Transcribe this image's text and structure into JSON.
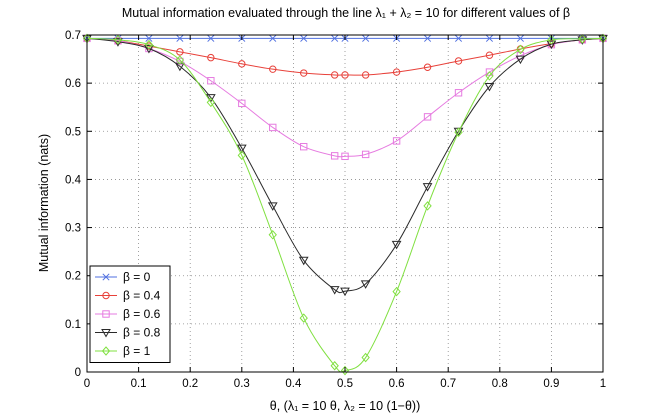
{
  "chart_data": {
    "type": "line",
    "title": "Mutual information evaluated through the line λ₁ + λ₂ = 10 for different values of β",
    "xlabel": "θ, (λ₁ = 10 θ, λ₂ = 10 (1−θ))",
    "ylabel": "Mutual information (nats)",
    "xlim": [
      0,
      1
    ],
    "ylim": [
      0,
      0.7
    ],
    "xticks": [
      0,
      0.1,
      0.2,
      0.3,
      0.4,
      0.5,
      0.6,
      0.7,
      0.8,
      0.9,
      1
    ],
    "xtick_labels": [
      "0",
      "0.1",
      "0.2",
      "0.3",
      "0.4",
      "0.5",
      "0.6",
      "0.7",
      "0.8",
      "0.9",
      "1"
    ],
    "yticks": [
      0,
      0.1,
      0.2,
      0.3,
      0.4,
      0.5,
      0.6,
      0.7
    ],
    "ytick_labels": [
      "0",
      "0.1",
      "0.2",
      "0.3",
      "0.4",
      "0.5",
      "0.6",
      "0.7"
    ],
    "grid": true,
    "legend_position": "bottom-left",
    "x": [
      0,
      0.06,
      0.12,
      0.18,
      0.24,
      0.3,
      0.36,
      0.42,
      0.48,
      0.5,
      0.54,
      0.6,
      0.66,
      0.72,
      0.78,
      0.84,
      0.9,
      0.96,
      1.0
    ],
    "series": [
      {
        "name": "β = 0",
        "color": "#4f6fe0",
        "marker": "x",
        "values": [
          0.693,
          0.693,
          0.693,
          0.693,
          0.693,
          0.693,
          0.693,
          0.693,
          0.693,
          0.693,
          0.693,
          0.693,
          0.693,
          0.693,
          0.693,
          0.693,
          0.693,
          0.693,
          0.693
        ]
      },
      {
        "name": "β = 0.4",
        "color": "#e8413a",
        "marker": "circle",
        "values": [
          0.693,
          0.688,
          0.677,
          0.665,
          0.653,
          0.64,
          0.629,
          0.621,
          0.617,
          0.617,
          0.617,
          0.623,
          0.633,
          0.646,
          0.658,
          0.671,
          0.682,
          0.69,
          0.693
        ]
      },
      {
        "name": "β = 0.6",
        "color": "#e67be0",
        "marker": "square",
        "values": [
          0.693,
          0.688,
          0.672,
          0.645,
          0.605,
          0.558,
          0.508,
          0.468,
          0.449,
          0.448,
          0.452,
          0.48,
          0.53,
          0.58,
          0.623,
          0.657,
          0.68,
          0.69,
          0.693
        ]
      },
      {
        "name": "β = 0.8",
        "color": "#2a2a2a",
        "marker": "triangle-down",
        "values": [
          0.693,
          0.686,
          0.672,
          0.635,
          0.57,
          0.465,
          0.345,
          0.232,
          0.171,
          0.168,
          0.183,
          0.265,
          0.385,
          0.5,
          0.593,
          0.65,
          0.681,
          0.69,
          0.693
        ]
      },
      {
        "name": "β = 1",
        "color": "#80e040",
        "marker": "diamond",
        "values": [
          0.693,
          0.69,
          0.68,
          0.648,
          0.56,
          0.45,
          0.285,
          0.112,
          0.013,
          0.003,
          0.03,
          0.167,
          0.345,
          0.498,
          0.615,
          0.67,
          0.69,
          0.692,
          0.693
        ]
      }
    ]
  }
}
